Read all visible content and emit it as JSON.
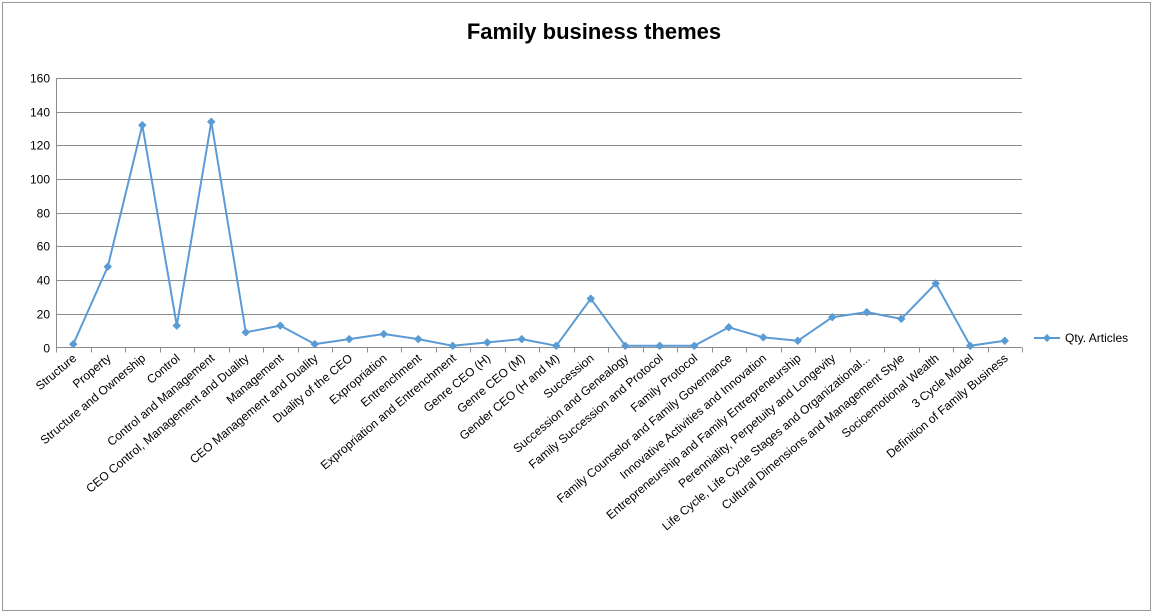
{
  "chart_data": {
    "type": "line",
    "title": "Family business  themes",
    "xlabel": "",
    "ylabel": "",
    "ylim": [
      0,
      160
    ],
    "yticks": [
      0,
      20,
      40,
      60,
      80,
      100,
      120,
      140,
      160
    ],
    "grid": true,
    "legend": "right",
    "colors": {
      "series": "#5b9bd5"
    },
    "categories": [
      "Structure",
      "Property",
      "Structure and Ownership",
      "Control",
      "Control and Management",
      "CEO Control, Management and Duality",
      "Management",
      "CEO Management and Duality",
      "Duality of the CEO",
      "Expropriation",
      "Entrenchment",
      "Expropriation and Entrenchment",
      "Genre CEO (H)",
      "Genre CEO (M)",
      "Gender CEO (H and M)",
      "Succession",
      "Succession and Genealogy",
      "Family Succession and Protocol",
      "Family Protocol",
      "Family Counselor and Family Governance",
      "Innovative Activities and Innovation",
      "Entrepreneurship and Family Entrepreneurship",
      "Perenniality, Perpetuity and Longevity",
      "Life Cycle, Life Cycle Stages and Organizational...",
      "Cultural Dimensions and Management Style",
      "Socioemotional Wealth",
      "3 Cycle Model",
      "Definition of Family Business"
    ],
    "series": [
      {
        "name": "Qty. Articles",
        "values": [
          2,
          48,
          132,
          13,
          134,
          9,
          13,
          2,
          5,
          8,
          5,
          1,
          3,
          5,
          1,
          29,
          1,
          1,
          1,
          12,
          6,
          4,
          18,
          21,
          17,
          38,
          1,
          4
        ]
      }
    ]
  }
}
